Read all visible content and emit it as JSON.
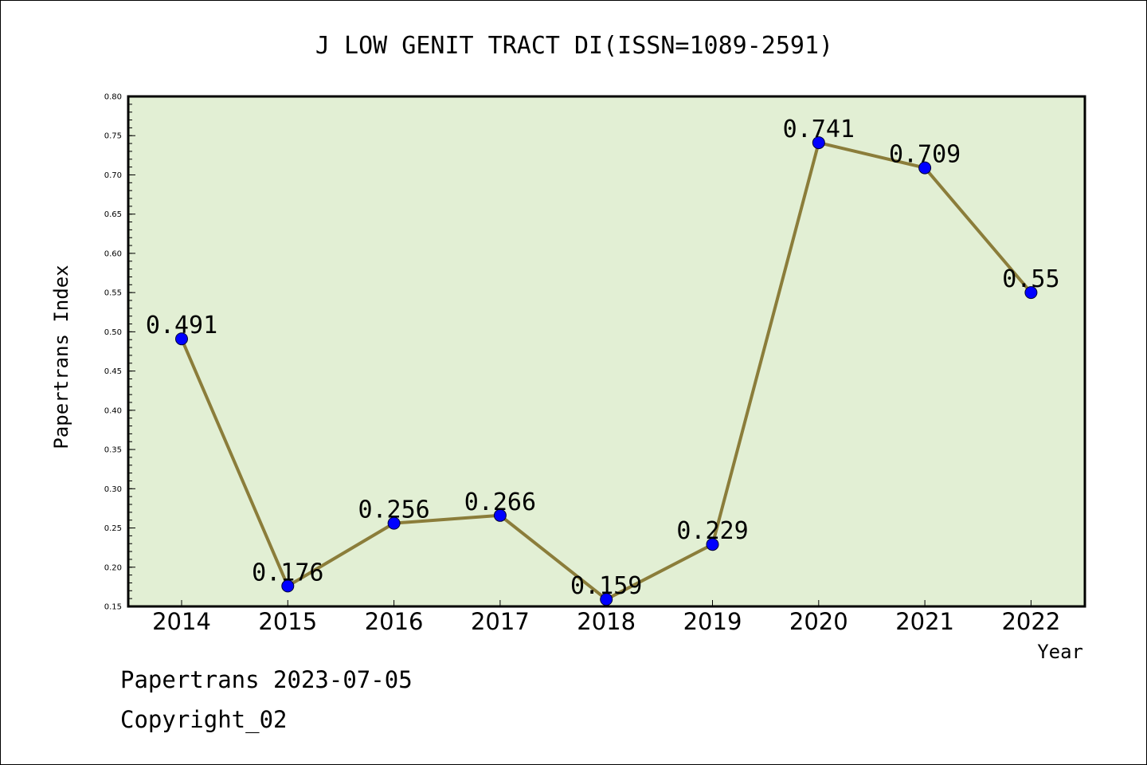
{
  "chart_data": {
    "type": "line",
    "title": "J LOW GENIT TRACT DI(ISSN=1089-2591)",
    "xlabel": "Year",
    "ylabel": "Papertrans Index",
    "categories": [
      "2014",
      "2015",
      "2016",
      "2017",
      "2018",
      "2019",
      "2020",
      "2021",
      "2022"
    ],
    "series": [
      {
        "values": [
          0.491,
          0.176,
          0.256,
          0.266,
          0.159,
          0.229,
          0.741,
          0.709,
          0.55
        ],
        "value_labels": [
          "0.491",
          "0.176",
          "0.256",
          "0.266",
          "0.159",
          "0.229",
          "0.741",
          "0.709",
          "0.55"
        ]
      }
    ],
    "ylim": [
      0.15,
      0.8
    ],
    "yticks": [
      "0.15",
      "0.20",
      "0.25",
      "0.30",
      "0.35",
      "0.40",
      "0.45",
      "0.50",
      "0.55",
      "0.60",
      "0.65",
      "0.70",
      "0.75",
      "0.80"
    ],
    "grid": false,
    "colors": {
      "plot_background": "#e2efd4",
      "line": "#8b7d3a",
      "marker": "#0000ff"
    }
  },
  "footer": {
    "date_line": "Papertrans 2023-07-05",
    "copyright": "Copyright_02"
  }
}
